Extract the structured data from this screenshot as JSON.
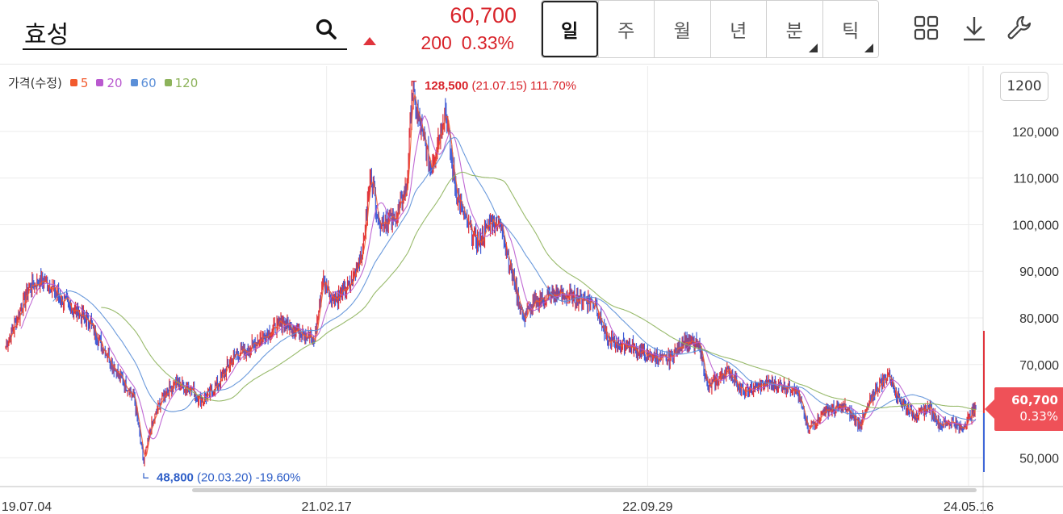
{
  "header": {
    "stock_name": "효성",
    "price": "60,700",
    "change_value": "200",
    "change_pct": "0.33%",
    "change_direction": "up",
    "periods": [
      {
        "label": "일",
        "active": true,
        "has_menu": false
      },
      {
        "label": "주",
        "active": false,
        "has_menu": false
      },
      {
        "label": "월",
        "active": false,
        "has_menu": false
      },
      {
        "label": "년",
        "active": false,
        "has_menu": false
      },
      {
        "label": "분",
        "active": false,
        "has_menu": true
      },
      {
        "label": "틱",
        "active": false,
        "has_menu": true
      }
    ],
    "tools": [
      "grid-layout-icon",
      "download-icon",
      "wrench-icon"
    ]
  },
  "count_button": "1200",
  "current_tag": {
    "price": "60,700",
    "pct": "0.33%"
  },
  "colors": {
    "up": "#e0343c",
    "down": "#3f5bd6",
    "ma5": "#f25a2d",
    "ma20": "#b959cf",
    "ma60": "#5b8fd8",
    "ma120": "#8db35b"
  },
  "chart_data": {
    "type": "line",
    "subtype": "candlestick-with-moving-averages",
    "legend_label": "가격(수정)",
    "series": [
      {
        "name": "5",
        "color": "#f25a2d"
      },
      {
        "name": "20",
        "color": "#b959cf"
      },
      {
        "name": "60",
        "color": "#5b8fd8"
      },
      {
        "name": "120",
        "color": "#8db35b"
      }
    ],
    "ylim": [
      44000,
      134000
    ],
    "y_ticks": [
      "120,000",
      "110,000",
      "100,000",
      "90,000",
      "80,000",
      "70,000",
      "60,000",
      "50,000"
    ],
    "y_tick_values": [
      120000,
      110000,
      100000,
      90000,
      80000,
      70000,
      60000,
      50000
    ],
    "x_ticks": [
      "19.07.04",
      "21.02.17",
      "22.09.29",
      "24.05.16"
    ],
    "x_tick_index": [
      0,
      400,
      800,
      1200
    ],
    "num_bars": 1210,
    "price_anchors": [
      [
        0,
        74000
      ],
      [
        15,
        80000
      ],
      [
        30,
        87000
      ],
      [
        50,
        88000
      ],
      [
        70,
        84000
      ],
      [
        90,
        81000
      ],
      [
        105,
        79000
      ],
      [
        120,
        74000
      ],
      [
        140,
        68000
      ],
      [
        160,
        63000
      ],
      [
        172,
        48800
      ],
      [
        180,
        56000
      ],
      [
        195,
        63000
      ],
      [
        210,
        66000
      ],
      [
        230,
        65000
      ],
      [
        245,
        62000
      ],
      [
        265,
        66000
      ],
      [
        285,
        72000
      ],
      [
        300,
        73000
      ],
      [
        320,
        76000
      ],
      [
        345,
        79000
      ],
      [
        370,
        77000
      ],
      [
        385,
        75000
      ],
      [
        395,
        88000
      ],
      [
        410,
        84000
      ],
      [
        430,
        87000
      ],
      [
        445,
        95000
      ],
      [
        455,
        111000
      ],
      [
        465,
        101000
      ],
      [
        485,
        101000
      ],
      [
        500,
        108000
      ],
      [
        506,
        128500
      ],
      [
        520,
        119000
      ],
      [
        530,
        112000
      ],
      [
        548,
        125000
      ],
      [
        560,
        108000
      ],
      [
        575,
        100000
      ],
      [
        590,
        96000
      ],
      [
        605,
        101000
      ],
      [
        618,
        100000
      ],
      [
        630,
        90000
      ],
      [
        645,
        80000
      ],
      [
        665,
        84000
      ],
      [
        690,
        85000
      ],
      [
        720,
        84000
      ],
      [
        735,
        83000
      ],
      [
        750,
        75000
      ],
      [
        775,
        74000
      ],
      [
        800,
        72000
      ],
      [
        825,
        71000
      ],
      [
        845,
        75000
      ],
      [
        865,
        74000
      ],
      [
        875,
        65000
      ],
      [
        900,
        69000
      ],
      [
        920,
        64000
      ],
      [
        950,
        66000
      ],
      [
        985,
        65000
      ],
      [
        1000,
        56000
      ],
      [
        1020,
        60000
      ],
      [
        1045,
        61000
      ],
      [
        1065,
        57000
      ],
      [
        1085,
        65000
      ],
      [
        1100,
        68000
      ],
      [
        1115,
        62000
      ],
      [
        1135,
        59000
      ],
      [
        1150,
        61000
      ],
      [
        1165,
        57000
      ],
      [
        1180,
        58000
      ],
      [
        1190,
        56000
      ],
      [
        1209,
        60700
      ]
    ],
    "annotations": [
      {
        "label": "128,500",
        "detail": "(21.07.15) 111.70%",
        "type": "high",
        "x_index": 506,
        "y": 128500
      },
      {
        "label": "48,800",
        "detail": "(20.03.20) -19.60%",
        "type": "low",
        "x_index": 172,
        "y": 48800
      }
    ],
    "grid": true
  }
}
